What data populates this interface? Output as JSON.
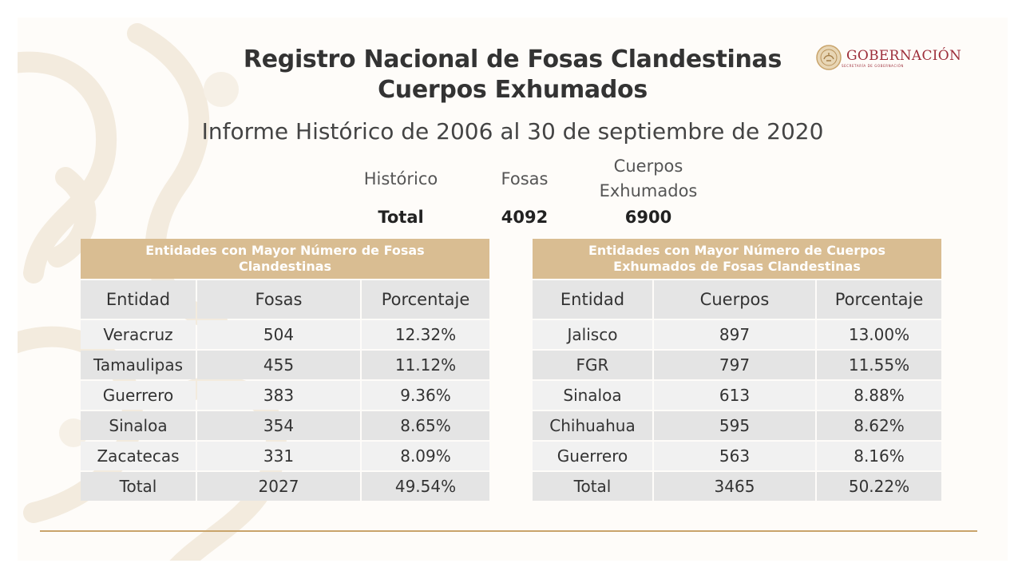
{
  "title_line1": "Registro Nacional de Fosas Clandestinas",
  "title_line2": "Cuerpos Exhumados",
  "subtitle": "Informe Histórico de 2006 al 30 de septiembre de 2020",
  "logo": {
    "text": "GOBERNACIÓN",
    "subtext": "SECRETARÍA DE GOBERNACIÓN",
    "seal_icon": "eagle-seal-icon"
  },
  "summary": {
    "historico_label": "Histórico",
    "fosas_label": "Fosas",
    "cuerpos_label_1": "Cuerpos",
    "cuerpos_label_2": "Exhumados",
    "total_label": "Total",
    "fosas_total": "4092",
    "cuerpos_total": "6900"
  },
  "table_fosas": {
    "heading": "Entidades con Mayor Número de Fosas Clandestinas",
    "columns": [
      "Entidad",
      "Fosas",
      "Porcentaje"
    ],
    "rows": [
      [
        "Veracruz",
        "504",
        "12.32%"
      ],
      [
        "Tamaulipas",
        "455",
        "11.12%"
      ],
      [
        "Guerrero",
        "383",
        "9.36%"
      ],
      [
        "Sinaloa",
        "354",
        "8.65%"
      ],
      [
        "Zacatecas",
        "331",
        "8.09%"
      ],
      [
        "Total",
        "2027",
        "49.54%"
      ]
    ]
  },
  "table_cuerpos": {
    "heading": "Entidades con Mayor Número de Cuerpos Exhumados de Fosas Clandestinas",
    "columns": [
      "Entidad",
      "Cuerpos",
      "Porcentaje"
    ],
    "rows": [
      [
        "Jalisco",
        "897",
        "13.00%"
      ],
      [
        "FGR",
        "797",
        "11.55%"
      ],
      [
        "Sinaloa",
        "613",
        "8.88%"
      ],
      [
        "Chihuahua",
        "595",
        "8.62%"
      ],
      [
        "Guerrero",
        "563",
        "8.16%"
      ],
      [
        "Total",
        "3465",
        "50.22%"
      ]
    ]
  },
  "colors": {
    "header_gold": "#d9bd92",
    "rule_gold": "#c9a46b",
    "logo_red": "#9d2e3a"
  }
}
